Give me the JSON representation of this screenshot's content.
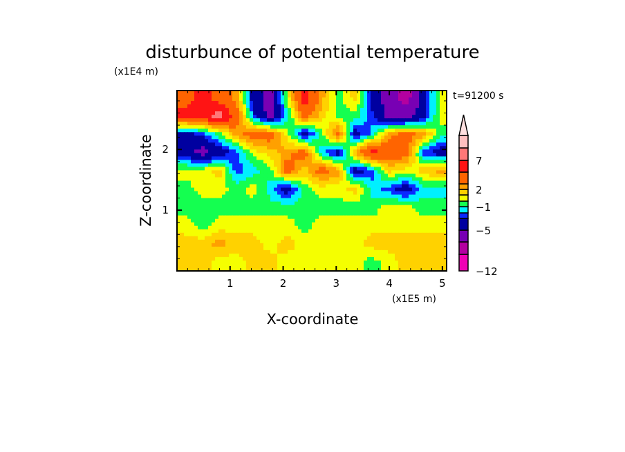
{
  "chart_data": {
    "type": "heatmap",
    "title": "disturbunce of potential temperature",
    "xlabel": "X-coordinate",
    "ylabel": "Z-coordinate",
    "x_scale_label": "(x1E5 m)",
    "y_scale_label": "(x1E4 m)",
    "annotation": "t=91200 s",
    "xlim": [
      0,
      5.08
    ],
    "ylim": [
      0,
      2.97
    ],
    "x_ticks": [
      1,
      2,
      3,
      4,
      5
    ],
    "x_tick_labels": [
      "1",
      "2",
      "3",
      "4",
      "5"
    ],
    "y_ticks": [
      1,
      2
    ],
    "y_tick_labels": [
      "1",
      "2"
    ],
    "grid_x": [
      0.16,
      0.48,
      0.8,
      1.12,
      1.44,
      1.76,
      2.08,
      2.4,
      2.72,
      3.04,
      3.36,
      3.68,
      4.0,
      4.32,
      4.64,
      4.96
    ],
    "grid_z": [
      2.85,
      2.55,
      2.25,
      1.95,
      1.65,
      1.35,
      1.05,
      0.75,
      0.45,
      0.15
    ],
    "values": [
      [
        4,
        6,
        4,
        2.5,
        -4,
        -6,
        0.5,
        6,
        2.5,
        -0.5,
        1.5,
        -4,
        -6,
        -8,
        -4,
        0.5
      ],
      [
        6,
        6,
        8,
        4,
        -2.5,
        -6,
        -1.5,
        4,
        1.5,
        -0.5,
        -0.5,
        -2.5,
        -6,
        -6,
        -4,
        0.5
      ],
      [
        -4,
        -2.5,
        -0.5,
        2.5,
        4,
        4,
        0.5,
        -4,
        -0.5,
        4,
        -4,
        -1.5,
        2.5,
        4,
        2.5,
        -0.5
      ],
      [
        -4,
        -6,
        -4,
        -2.5,
        0.5,
        1.5,
        2.5,
        4,
        -1.5,
        -4,
        2.5,
        6,
        4,
        4,
        -2.5,
        -4
      ],
      [
        0.5,
        0.5,
        1.5,
        -2.5,
        -1.5,
        -0.5,
        4,
        1.5,
        4,
        2.5,
        -4,
        -2.5,
        1.5,
        0.5,
        1.5,
        2.5
      ],
      [
        -0.5,
        0.5,
        0.5,
        -0.5,
        0.5,
        -1.5,
        -4,
        -0.5,
        0.5,
        0.5,
        1.5,
        -1.5,
        -2.5,
        -4,
        -1.5,
        -1.5
      ],
      [
        -0.5,
        -0.5,
        -0.5,
        -0.5,
        -0.5,
        -0.5,
        -0.5,
        -0.5,
        -0.5,
        -0.5,
        -0.5,
        -0.5,
        0.5,
        0.5,
        -0.5,
        -0.5
      ],
      [
        0.5,
        -0.5,
        0.5,
        0.5,
        0.5,
        0.5,
        0.5,
        -0.5,
        0.5,
        0.5,
        0.5,
        0.5,
        0.5,
        0.5,
        0.5,
        0.5
      ],
      [
        1.5,
        1.5,
        2.5,
        1.5,
        1.5,
        0.5,
        1.5,
        0.5,
        0.5,
        0.5,
        0.5,
        1.5,
        1.5,
        1.5,
        1.5,
        1.5
      ],
      [
        1.5,
        1.5,
        0.5,
        0.5,
        1.5,
        1.5,
        0.5,
        0.5,
        0.5,
        0.5,
        0.5,
        -0.5,
        0.5,
        1.5,
        1.5,
        1.5
      ]
    ],
    "levels": [
      -12,
      -9,
      -7,
      -5,
      -3,
      -2,
      -1,
      0,
      1,
      2,
      3,
      5,
      7,
      9,
      11
    ],
    "colors": [
      "#f000b4",
      "#b400a0",
      "#7800b4",
      "#0000a0",
      "#0a28ff",
      "#00f0ff",
      "#14ff50",
      "#f5ff00",
      "#ffd200",
      "#ffa000",
      "#ff6400",
      "#ff1414",
      "#ff7878",
      "#ffc0c0"
    ],
    "overflow_color": "#ffe0e0",
    "colorbar_labels": [
      {
        "level": 7,
        "text": "7"
      },
      {
        "level": 2,
        "text": "2"
      },
      {
        "level": -1,
        "text": "−1"
      },
      {
        "level": -5,
        "text": "−5"
      },
      {
        "level": -12,
        "text": "−12"
      }
    ]
  }
}
